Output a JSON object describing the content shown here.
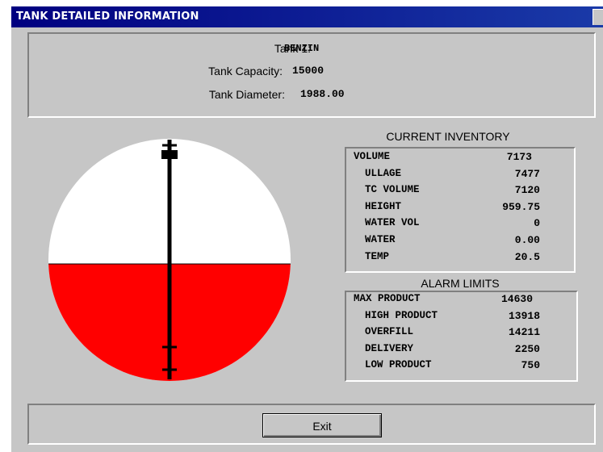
{
  "window": {
    "title": "TANK DETAILED INFORMATION"
  },
  "header": {
    "tank_label": "Tank 1:",
    "tank_name": "BENZIN",
    "capacity_label": "Tank Capacity:",
    "capacity": "15000",
    "diameter_label": "Tank Diameter:",
    "diameter": "1988.00"
  },
  "inventory": {
    "title": "CURRENT INVENTORY",
    "rows": [
      [
        "VOLUME",
        "7173"
      ],
      [
        "ULLAGE",
        "7477"
      ],
      [
        "TC VOLUME",
        "7120"
      ],
      [
        "HEIGHT",
        "959.75"
      ],
      [
        "WATER VOL",
        "0"
      ],
      [
        "WATER",
        "0.00"
      ],
      [
        "TEMP",
        "20.5"
      ]
    ]
  },
  "alarm_limits": {
    "title": "ALARM LIMITS",
    "rows": [
      [
        "MAX PRODUCT",
        "14630"
      ],
      [
        "HIGH PRODUCT",
        "13918"
      ],
      [
        "OVERFILL",
        "14211"
      ],
      [
        "DELIVERY",
        "2250"
      ],
      [
        "LOW PRODUCT",
        "750"
      ]
    ]
  },
  "buttons": {
    "exit": "Exit"
  }
}
